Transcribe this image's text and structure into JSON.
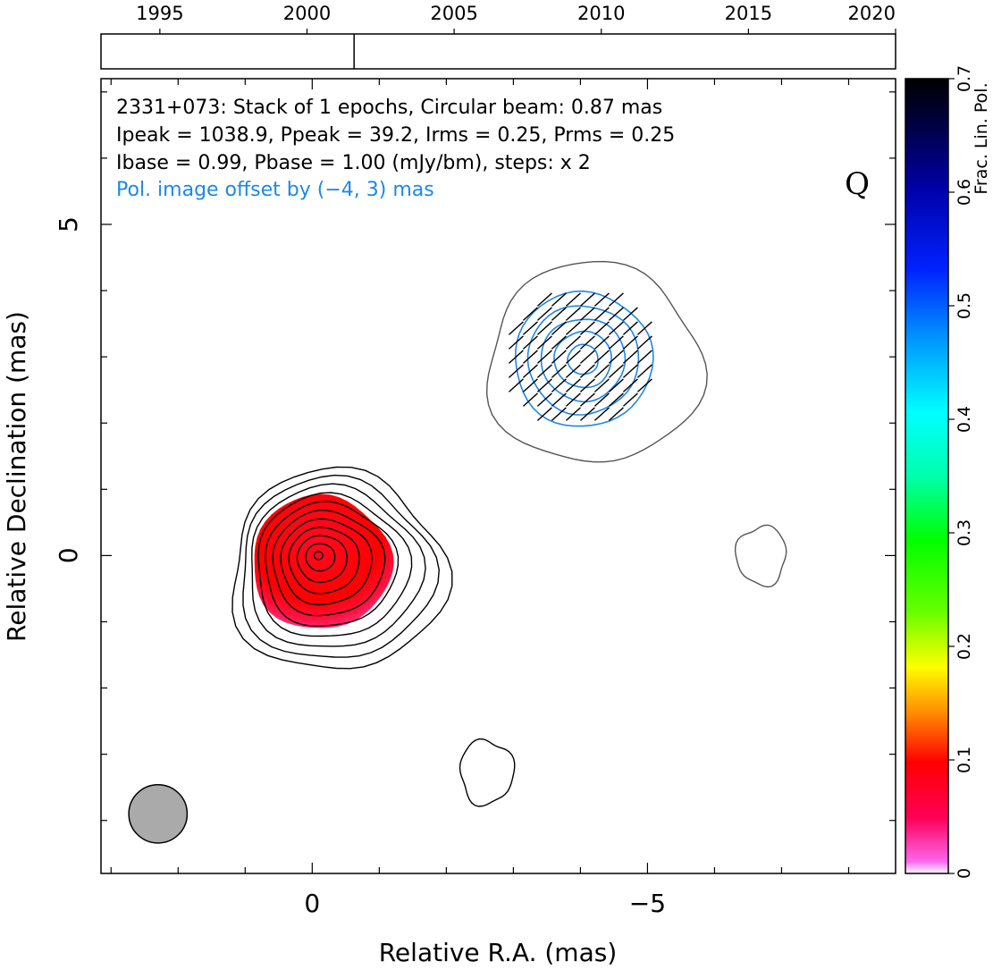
{
  "chart_data": {
    "type": "contour",
    "title_lines": [
      "2331+073: Stack of 1 epochs, Circular beam: 0.87 mas",
      "Ipeak = 1038.9, Ppeak = 39.2, Irms = 0.25, Prms = 0.25",
      "Ibase = 0.99, Pbase = 1.00 (mJy/bm), steps: x 2"
    ],
    "offset_note": "Pol. image offset by (−4, 3) mas",
    "band_label": "Q",
    "xlabel": "Relative R.A. (mas)",
    "ylabel": "Relative Declination (mas)",
    "xlim": [
      3.15,
      -8.7
    ],
    "ylim": [
      -4.8,
      7.2
    ],
    "x_major_ticks": [
      0,
      -5
    ],
    "x_tick_labels": [
      "0",
      "−5"
    ],
    "y_major_ticks": [
      0,
      5
    ],
    "y_tick_labels": [
      "0",
      "5"
    ],
    "timeline": {
      "range": [
        1993,
        2020
      ],
      "tick_labels": [
        "1995",
        "2000",
        "2005",
        "2010",
        "2015",
        "2020"
      ],
      "tick_years": [
        1995,
        2000,
        2005,
        2010,
        2015,
        2020
      ],
      "epochs": [
        2001.6
      ]
    },
    "colorbar": {
      "label": "Frac. Lin. Pol.",
      "range": [
        0,
        0.7
      ],
      "ticks": [
        0,
        0.1,
        0.2,
        0.3,
        0.4,
        0.5,
        0.6,
        0.7
      ],
      "tick_labels": [
        "0",
        "0.1",
        "0.2",
        "0.3",
        "0.4",
        "0.5",
        "0.6",
        "0.7"
      ]
    },
    "beam_fwhm_mas": 0.87,
    "total_intensity_core": {
      "ra": 0,
      "dec": 0,
      "peak": 1038.9,
      "contour_count": 11
    },
    "fractional_polarization_core": {
      "ra": -0.05,
      "dec": -0.1,
      "max": 0.03
    },
    "polarized_intensity": {
      "ra": -4,
      "dec": 3,
      "peak": 39.2,
      "contour_count": 5
    },
    "lowest_contour_patches": [
      {
        "ra": -2.6,
        "dec": -3.0
      },
      {
        "ra": -6.7,
        "dec": 0.0
      }
    ]
  },
  "colors": {
    "i_contours": "#000000",
    "pol_contours": "#1e88e5",
    "offset_pol_outline": "#555555",
    "note_text": "#1e88e5",
    "beam_fill": "#aaaaaa"
  }
}
